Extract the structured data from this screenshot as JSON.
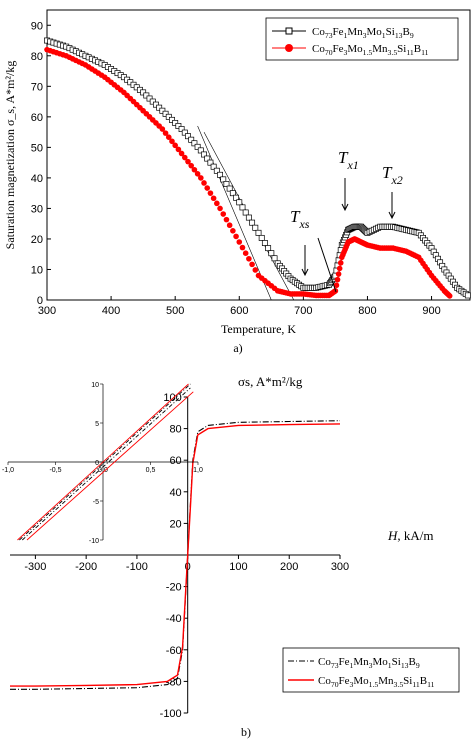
{
  "chart_data": [
    {
      "type": "scatter",
      "panel_label": "a)",
      "xlabel": "Temperature, K",
      "ylabel": "Saturation magnetization σ_s, A*m²/kg",
      "xlim": [
        300,
        960
      ],
      "ylim": [
        0,
        95
      ],
      "xticks": [
        300,
        400,
        500,
        600,
        700,
        800,
        900
      ],
      "yticks": [
        0,
        10,
        20,
        30,
        40,
        50,
        60,
        70,
        80,
        90
      ],
      "legend_position": "top-right",
      "annotations": [
        "T xs",
        "T x1",
        "T x2"
      ],
      "series": [
        {
          "name": "Co73Fe1Mn3Mo1Si13B9",
          "legend_main": "Co",
          "legend_parts": [
            [
              "73",
              "Fe"
            ],
            [
              "1",
              "Mn"
            ],
            [
              "3",
              "Mo"
            ],
            [
              "1",
              "Si"
            ],
            [
              "13",
              "B"
            ],
            [
              "9",
              ""
            ]
          ],
          "marker": "open-square",
          "color": "#000000",
          "x": [
            300,
            330,
            360,
            390,
            420,
            450,
            480,
            510,
            540,
            570,
            600,
            630,
            660,
            680,
            700,
            720,
            740,
            750,
            760,
            770,
            780,
            790,
            800,
            820,
            840,
            860,
            880,
            900,
            920,
            940,
            960
          ],
          "y": [
            85,
            83,
            80,
            77,
            73,
            68,
            62,
            56,
            49,
            41,
            32,
            22,
            12,
            7,
            4,
            4,
            5,
            8,
            18,
            23,
            24,
            24,
            22,
            24,
            24,
            23,
            22,
            17,
            10,
            4,
            1
          ]
        },
        {
          "name": "Co70Fe3Mo1.5Mn3.5Si11B11",
          "legend_main": "Co",
          "legend_parts": [
            [
              "70",
              "Fe"
            ],
            [
              "3",
              "Mo"
            ],
            [
              "1.5",
              "Mn"
            ],
            [
              "3.5",
              "Si"
            ],
            [
              "11",
              "B"
            ],
            [
              "11",
              ""
            ]
          ],
          "marker": "filled-circle",
          "color": "#ff0000",
          "x": [
            300,
            330,
            360,
            390,
            420,
            450,
            480,
            510,
            540,
            570,
            600,
            630,
            660,
            680,
            700,
            720,
            740,
            750,
            760,
            770,
            780,
            790,
            800,
            820,
            840,
            860,
            880,
            900,
            920,
            930
          ],
          "y": [
            82,
            80,
            77,
            73,
            68,
            62,
            56,
            48,
            40,
            30,
            19,
            8,
            3,
            2,
            2,
            1.5,
            1.5,
            3,
            14,
            19,
            20,
            19,
            18,
            17,
            17,
            16,
            14,
            8,
            3,
            1
          ]
        }
      ]
    },
    {
      "type": "line",
      "panel_label": "b)",
      "xlabel": "H",
      "xunit": ", kA/m",
      "ylabel": "σs, A*m²/kg",
      "xlim": [
        -350,
        300
      ],
      "ylim": [
        -100,
        100
      ],
      "xticks": [
        -300,
        -200,
        -100,
        0,
        100,
        200,
        300
      ],
      "yticks": [
        -100,
        -80,
        -60,
        -40,
        -20,
        0,
        20,
        40,
        60,
        80,
        100
      ],
      "legend_position": "bottom-right",
      "series": [
        {
          "name": "Co73Fe1Mn3Mo1Si13B9",
          "legend_main": "Co",
          "legend_parts": [
            [
              "73",
              "Fe"
            ],
            [
              "1",
              "Mn"
            ],
            [
              "3",
              "Mo"
            ],
            [
              "1",
              "Si"
            ],
            [
              "13",
              "B"
            ],
            [
              "9",
              ""
            ]
          ],
          "color": "#000000",
          "style": "dash-dot",
          "x": [
            -350,
            -300,
            -200,
            -100,
            -40,
            -20,
            -10,
            -5,
            0,
            5,
            10,
            20,
            40,
            100,
            200,
            300
          ],
          "y": [
            -85,
            -85,
            -84.5,
            -84,
            -82,
            -78,
            -60,
            -30,
            0,
            30,
            60,
            78,
            82,
            84,
            84.5,
            85
          ]
        },
        {
          "name": "Co70Fe3Mo1.5Mn3.5Si11B11",
          "legend_main": "Co",
          "legend_parts": [
            [
              "70",
              "Fe"
            ],
            [
              "3",
              "Mo"
            ],
            [
              "1.5",
              "Mn"
            ],
            [
              "3.5",
              "Si"
            ],
            [
              "11",
              "B"
            ],
            [
              "11",
              ""
            ]
          ],
          "color": "#ff0000",
          "style": "solid",
          "x": [
            -350,
            -300,
            -200,
            -100,
            -40,
            -20,
            -10,
            -5,
            0,
            5,
            10,
            20,
            40,
            100,
            200,
            300
          ],
          "y": [
            -83,
            -83,
            -82.5,
            -82,
            -80,
            -76,
            -58,
            -28,
            0,
            28,
            58,
            76,
            80,
            82,
            82.5,
            83
          ]
        }
      ],
      "inset": {
        "xlim": [
          -1.0,
          1.0
        ],
        "ylim": [
          -10,
          10
        ],
        "xticks": [
          "-1,0",
          "-0,5",
          "0,0",
          "0,5",
          "1,0"
        ],
        "xtick_values": [
          -1.0,
          -0.5,
          0.0,
          0.5,
          1.0
        ],
        "yticks": [
          "10",
          "5",
          "0",
          "-5",
          "-10"
        ],
        "ytick_values": [
          10,
          5,
          0,
          -5,
          -10
        ],
        "series": [
          {
            "color": "#ff0000",
            "style": "solid",
            "x": [
              -0.9,
              0.9
            ],
            "y": [
              -10.0,
              10.0
            ]
          },
          {
            "color": "#ff0000",
            "style": "solid",
            "x": [
              -0.8,
              0.95
            ],
            "y": [
              -10.0,
              9.0
            ]
          },
          {
            "color": "#000000",
            "style": "dash-dot",
            "x": [
              -0.85,
              0.92
            ],
            "y": [
              -10.0,
              9.5
            ]
          },
          {
            "color": "#000000",
            "style": "dash-dot",
            "x": [
              -0.88,
              0.92
            ],
            "y": [
              -10.0,
              10.0
            ]
          }
        ]
      }
    }
  ]
}
